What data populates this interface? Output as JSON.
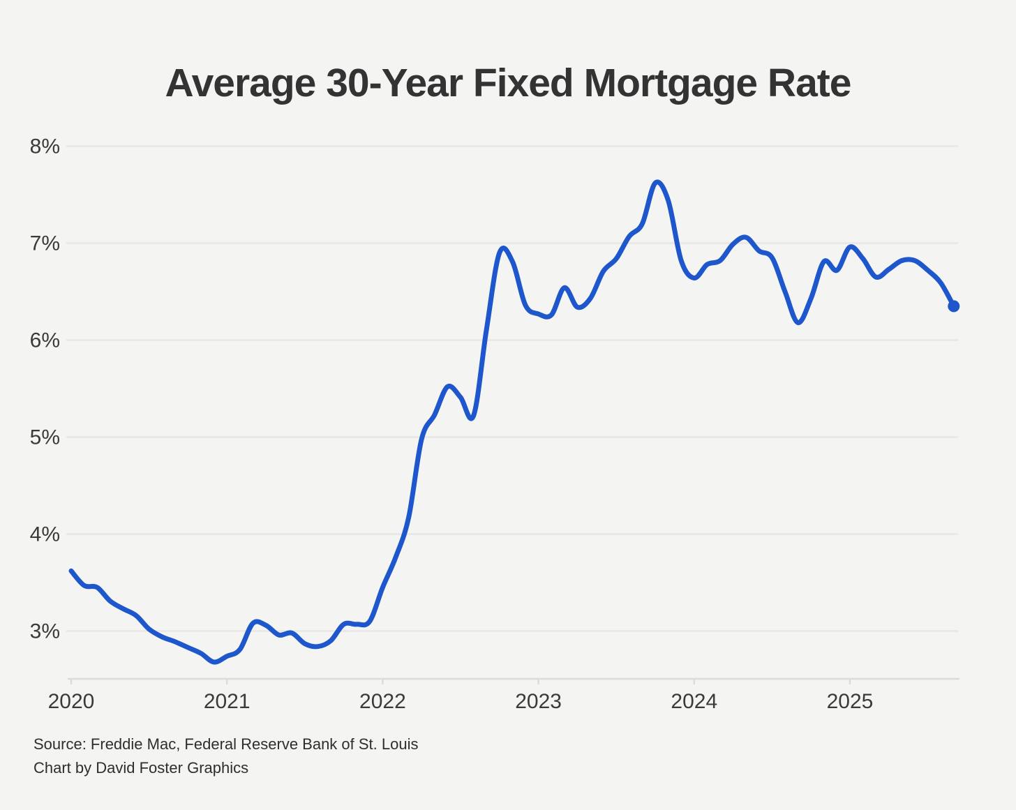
{
  "chart": {
    "title": "Average 30-Year Fixed Mortgage Rate"
  },
  "footer": {
    "source": "Source: Freddie Mac, Federal Reserve Bank of St. Louis",
    "credit": "Chart by David Foster Graphics"
  },
  "colors": {
    "background": "#f4f4f2",
    "gridline": "#e8e7e4",
    "axis": "#dcdbd8",
    "tick_text": "#3a3a3a",
    "title_text": "#333333",
    "line": "#1e56cc",
    "end_dot": "#1e56cc"
  },
  "chart_data": {
    "type": "line",
    "title": "Average 30-Year Fixed Mortgage Rate",
    "xlabel": "",
    "ylabel": "",
    "grid": "horizontal",
    "legend": "none",
    "ylim": [
      2.5,
      8
    ],
    "y_ticks": [
      {
        "label": "8%",
        "value": 8
      },
      {
        "label": "7%",
        "value": 7
      },
      {
        "label": "6%",
        "value": 6
      },
      {
        "label": "5%",
        "value": 5
      },
      {
        "label": "4%",
        "value": 4
      },
      {
        "label": "3%",
        "value": 3
      }
    ],
    "x_ticks": [
      {
        "label": "2020",
        "year": 2020
      },
      {
        "label": "2021",
        "year": 2021
      },
      {
        "label": "2022",
        "year": 2022
      },
      {
        "label": "2023",
        "year": 2023
      },
      {
        "label": "2024",
        "year": 2024
      },
      {
        "label": "2025",
        "year": 2025
      }
    ],
    "series": [
      {
        "name": "Average 30-year fixed mortgage rate (%)",
        "x": [
          "2020-01",
          "2020-02",
          "2020-03",
          "2020-04",
          "2020-05",
          "2020-06",
          "2020-07",
          "2020-08",
          "2020-09",
          "2020-10",
          "2020-11",
          "2020-12",
          "2021-01",
          "2021-02",
          "2021-03",
          "2021-04",
          "2021-05",
          "2021-06",
          "2021-07",
          "2021-08",
          "2021-09",
          "2021-10",
          "2021-11",
          "2021-12",
          "2022-01",
          "2022-02",
          "2022-03",
          "2022-04",
          "2022-05",
          "2022-06",
          "2022-07",
          "2022-08",
          "2022-09",
          "2022-10",
          "2022-11",
          "2022-12",
          "2023-01",
          "2023-02",
          "2023-03",
          "2023-04",
          "2023-05",
          "2023-06",
          "2023-07",
          "2023-08",
          "2023-09",
          "2023-10",
          "2023-11",
          "2023-12",
          "2024-01",
          "2024-02",
          "2024-03",
          "2024-04",
          "2024-05",
          "2024-06",
          "2024-07",
          "2024-08",
          "2024-09",
          "2024-10",
          "2024-11",
          "2024-12",
          "2025-01",
          "2025-02",
          "2025-03",
          "2025-04",
          "2025-05",
          "2025-06",
          "2025-07",
          "2025-08",
          "2025-09"
        ],
        "values": [
          3.62,
          3.47,
          3.45,
          3.31,
          3.23,
          3.16,
          3.02,
          2.94,
          2.89,
          2.83,
          2.77,
          2.68,
          2.74,
          2.81,
          3.08,
          3.06,
          2.96,
          2.98,
          2.87,
          2.84,
          2.9,
          3.07,
          3.07,
          3.1,
          3.45,
          3.76,
          4.17,
          4.98,
          5.23,
          5.52,
          5.41,
          5.22,
          6.11,
          6.9,
          6.81,
          6.36,
          6.27,
          6.26,
          6.54,
          6.34,
          6.43,
          6.71,
          6.84,
          7.07,
          7.2,
          7.62,
          7.44,
          6.82,
          6.64,
          6.78,
          6.82,
          6.99,
          7.06,
          6.92,
          6.85,
          6.5,
          6.18,
          6.43,
          6.81,
          6.72,
          6.96,
          6.84,
          6.65,
          6.73,
          6.82,
          6.82,
          6.72,
          6.59,
          6.35
        ]
      }
    ],
    "last_point": {
      "x": "2025-09",
      "value": 6.35,
      "marker": "dot"
    }
  }
}
